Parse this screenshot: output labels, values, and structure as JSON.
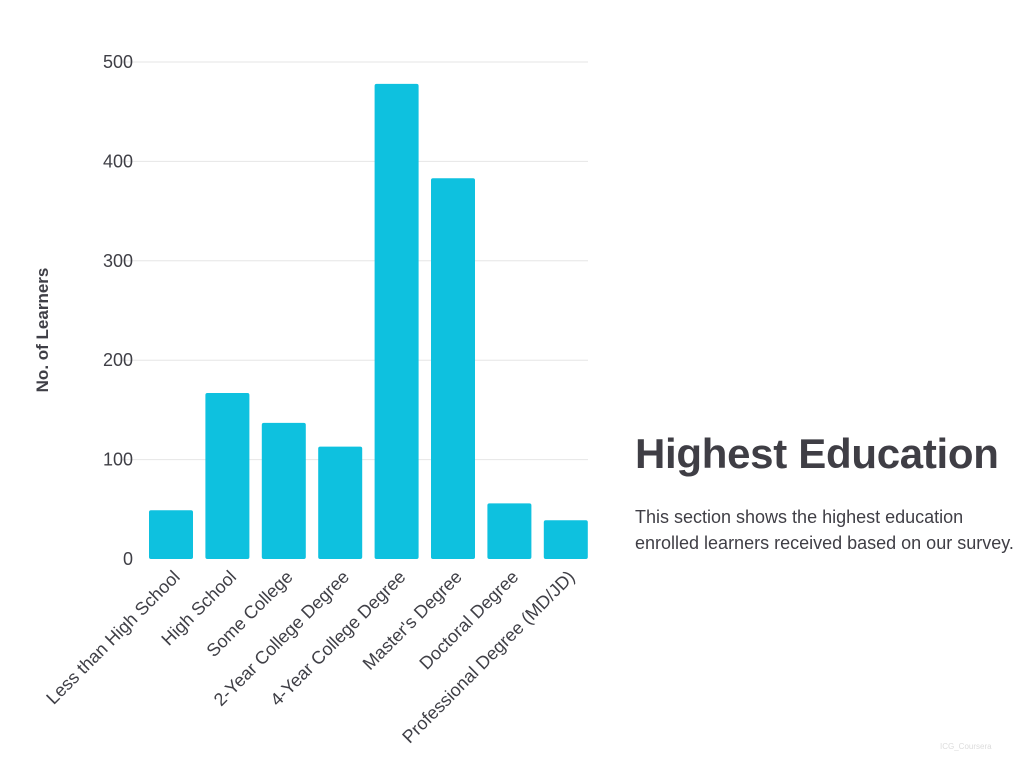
{
  "section": {
    "title": "Highest Education",
    "description": "This section shows the highest education enrolled learners received based on our survey."
  },
  "watermark": "ICG_Coursera",
  "colors": {
    "bar": "#0ec1df",
    "text": "#3f3e45",
    "grid": "#e6e6e6"
  },
  "chart_data": {
    "type": "bar",
    "categories": [
      "Less than High School",
      "High School",
      "Some College",
      "2-Year College Degree",
      "4-Year College Degree",
      "Master's Degree",
      "Doctoral Degree",
      "Professional Degree (MD/JD)"
    ],
    "values": [
      49,
      167,
      137,
      113,
      478,
      383,
      56,
      39
    ],
    "xlabel": "",
    "ylabel": "No. of Learners",
    "ylim": [
      0,
      500
    ],
    "yticks": [
      0,
      100,
      200,
      300,
      400,
      500
    ],
    "grid": true,
    "legend": "none"
  }
}
